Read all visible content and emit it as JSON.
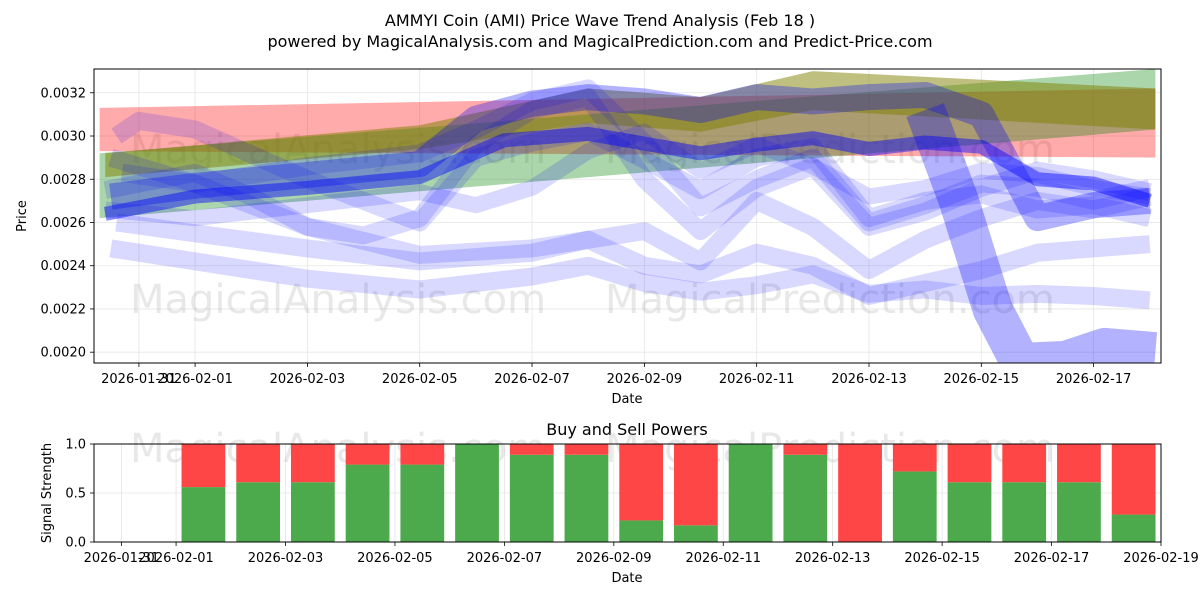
{
  "chart_data": [
    {
      "type": "line",
      "title": "AMMYI Coin (AMI) Price Wave Trend Analysis (Feb 18 )",
      "subtitle": "powered by MagicalAnalysis.com and MagicalPrediction.com and Predict-Price.com",
      "xlabel": "Date",
      "ylabel": "Price",
      "xlim": [
        -0.8,
        18.2
      ],
      "ylim": [
        0.00195,
        0.00331
      ],
      "x_ticks": [
        "2026-01-31",
        "2026-02-01",
        "2026-02-03",
        "2026-02-05",
        "2026-02-07",
        "2026-02-09",
        "2026-02-11",
        "2026-02-13",
        "2026-02-15",
        "2026-02-17"
      ],
      "x_tick_positions": [
        0,
        1,
        3,
        5,
        7,
        9,
        11,
        13,
        15,
        17
      ],
      "y_ticks": [
        "0.0020",
        "0.0022",
        "0.0024",
        "0.0026",
        "0.0028",
        "0.0030",
        "0.0032"
      ],
      "y_tick_values": [
        0.002,
        0.0022,
        0.0024,
        0.0026,
        0.0028,
        0.003,
        0.0032
      ],
      "watermarks": [
        "MagicalAnalysis.com",
        "MagicalPrediction.com"
      ],
      "bands": [
        {
          "name": "red-trend",
          "color": "#ff0000",
          "opacity": 0.33,
          "x": [
            -0.7,
            18.1
          ],
          "upper": [
            0.00313,
            0.00322
          ],
          "lower": [
            0.00293,
            0.0029
          ]
        },
        {
          "name": "green-trend",
          "color": "#008000",
          "opacity": 0.33,
          "x": [
            -0.7,
            18.1
          ],
          "upper": [
            0.00292,
            0.00331
          ],
          "lower": [
            0.00262,
            0.00303
          ]
        },
        {
          "name": "olive-trend",
          "color": "#808000",
          "opacity": 0.5,
          "x": [
            -0.6,
            5,
            8,
            10,
            12,
            18.1
          ],
          "upper": [
            0.00292,
            0.00305,
            0.00322,
            0.00318,
            0.0033,
            0.00322
          ],
          "lower": [
            0.00281,
            0.00294,
            0.00306,
            0.00302,
            0.00312,
            0.00303
          ]
        }
      ],
      "series": [
        {
          "name": "wave-1",
          "color": "#0000ff",
          "opacity": 0.45,
          "width": 14,
          "x": [
            -0.6,
            1,
            3,
            5,
            6.5,
            8,
            10,
            11,
            12,
            13,
            14,
            15,
            16,
            17,
            18
          ],
          "y": [
            0.00264,
            0.00272,
            0.00276,
            0.00281,
            0.00298,
            0.00301,
            0.00292,
            0.00296,
            0.00299,
            0.00294,
            0.00297,
            0.00295,
            0.0028,
            0.00278,
            0.0027
          ]
        },
        {
          "name": "wave-2",
          "color": "#0000ff",
          "opacity": 0.15,
          "width": 18,
          "x": [
            -0.5,
            1,
            3,
            5,
            7,
            9,
            10,
            11,
            12,
            13,
            14,
            15,
            16,
            17,
            18
          ],
          "y": [
            0.0029,
            0.00278,
            0.00258,
            0.00245,
            0.00248,
            0.00256,
            0.00242,
            0.0027,
            0.00258,
            0.00238,
            0.00252,
            0.00262,
            0.0027,
            0.00266,
            0.00272
          ]
        },
        {
          "name": "wave-3",
          "color": "#0000ff",
          "opacity": 0.15,
          "width": 18,
          "x": [
            -0.5,
            1,
            3,
            5,
            7,
            8,
            9,
            10,
            11,
            12,
            13,
            14,
            15,
            16,
            17,
            18
          ],
          "y": [
            0.00248,
            0.00242,
            0.00234,
            0.00229,
            0.00235,
            0.0024,
            0.00232,
            0.00228,
            0.00231,
            0.00236,
            0.00227,
            0.00229,
            0.00226,
            0.00227,
            0.00226,
            0.00224
          ]
        },
        {
          "name": "wave-4",
          "color": "#0000ff",
          "opacity": 0.15,
          "width": 18,
          "x": [
            -0.4,
            1,
            3,
            5,
            7,
            8,
            9,
            10,
            11,
            12,
            13,
            14,
            15,
            16,
            17,
            18
          ],
          "y": [
            0.0026,
            0.00255,
            0.00248,
            0.00242,
            0.00246,
            0.00252,
            0.0024,
            0.00236,
            0.00246,
            0.0024,
            0.00226,
            0.00232,
            0.00238,
            0.00246,
            0.00248,
            0.0025
          ]
        },
        {
          "name": "wave-5",
          "color": "#0000ff",
          "opacity": 0.15,
          "width": 18,
          "x": [
            -0.4,
            0,
            1,
            3,
            5,
            6,
            7,
            8,
            9,
            10,
            11,
            12,
            13,
            14,
            15,
            16,
            17,
            18
          ],
          "y": [
            0.003,
            0.00307,
            0.00303,
            0.0028,
            0.0026,
            0.0029,
            0.00297,
            0.00302,
            0.00289,
            0.00275,
            0.0029,
            0.00295,
            0.00262,
            0.0027,
            0.00273,
            0.00266,
            0.00268,
            0.00262
          ]
        },
        {
          "name": "wave-6",
          "color": "#0000ff",
          "opacity": 0.15,
          "width": 16,
          "x": [
            -0.6,
            1,
            3,
            5,
            6,
            7,
            8,
            9,
            10,
            11,
            12,
            13,
            14,
            15,
            16,
            17,
            18
          ],
          "y": [
            0.00266,
            0.00262,
            0.00268,
            0.00274,
            0.00268,
            0.00276,
            0.00293,
            0.00302,
            0.00284,
            0.00296,
            0.00286,
            0.00272,
            0.00276,
            0.00284,
            0.00282,
            0.00276,
            0.00272
          ]
        },
        {
          "name": "wave-7",
          "color": "#0000ff",
          "opacity": 0.15,
          "width": 18,
          "x": [
            -0.6,
            1,
            2,
            3,
            4,
            5,
            6,
            7,
            8,
            9,
            10,
            11,
            12,
            13,
            14,
            15,
            16,
            17,
            18
          ],
          "y": [
            0.00275,
            0.00283,
            0.00272,
            0.00258,
            0.00254,
            0.00262,
            0.00296,
            0.00312,
            0.00318,
            0.0028,
            0.00256,
            0.00276,
            0.00286,
            0.00258,
            0.00265,
            0.00276,
            0.00284,
            0.0028,
            0.00274
          ]
        },
        {
          "name": "wave-8",
          "color": "#0000ff",
          "opacity": 0.15,
          "width": 18,
          "x": [
            -0.3,
            1,
            3,
            5,
            6,
            7,
            8,
            9,
            10,
            11,
            12,
            13,
            14,
            15,
            16,
            17,
            18
          ],
          "y": [
            0.00283,
            0.00278,
            0.00286,
            0.00292,
            0.00303,
            0.00316,
            0.00322,
            0.00297,
            0.00267,
            0.0028,
            0.0029,
            0.0026,
            0.00268,
            0.00278,
            0.00276,
            0.0027,
            0.00276
          ]
        },
        {
          "name": "wave-9",
          "color": "#0000ff",
          "opacity": 0.3,
          "width": 26,
          "x": [
            -0.5,
            1,
            3,
            5,
            6,
            7,
            8,
            9,
            10,
            11,
            12,
            13,
            14,
            15,
            16,
            17,
            18
          ],
          "y": [
            0.00272,
            0.00277,
            0.00282,
            0.00287,
            0.00308,
            0.00315,
            0.00318,
            0.00316,
            0.00312,
            0.00318,
            0.00316,
            0.00318,
            0.00319,
            0.0031,
            0.00262,
            0.00268,
            0.0027
          ]
        },
        {
          "name": "wave-10",
          "color": "#0000ff",
          "opacity": 0.3,
          "width": 40,
          "x": [
            14,
            14.6,
            15.2,
            15.7,
            16.5,
            17.2,
            18.1
          ],
          "y": [
            0.00312,
            0.0027,
            0.0022,
            0.00195,
            0.00196,
            0.00202,
            0.002
          ]
        }
      ]
    },
    {
      "type": "bar",
      "title": "Buy and Sell Powers",
      "xlabel": "Date",
      "ylabel": "Signal Strength",
      "xlim": [
        -1,
        18.5
      ],
      "ylim": [
        0,
        1
      ],
      "x_ticks": [
        "2026-01-31",
        "2026-02-01",
        "2026-02-03",
        "2026-02-05",
        "2026-02-07",
        "2026-02-09",
        "2026-02-11",
        "2026-02-13",
        "2026-02-15",
        "2026-02-17",
        "2026-02-19"
      ],
      "x_tick_positions": [
        -0.5,
        0.5,
        2.5,
        4.5,
        6.5,
        8.5,
        10.5,
        12.5,
        14.5,
        16.5,
        18.5
      ],
      "y_ticks": [
        "0.0",
        "0.5",
        "1.0"
      ],
      "y_tick_values": [
        0,
        0.5,
        1
      ],
      "categories": [
        "2026-02-01",
        "2026-02-02",
        "2026-02-03",
        "2026-02-04",
        "2026-02-05",
        "2026-02-06",
        "2026-02-07",
        "2026-02-08",
        "2026-02-09",
        "2026-02-10",
        "2026-02-11",
        "2026-02-12",
        "2026-02-13",
        "2026-02-14",
        "2026-02-15",
        "2026-02-16",
        "2026-02-17",
        "2026-02-18"
      ],
      "series": [
        {
          "name": "Buy",
          "color": "#4caa4c",
          "values": [
            0.56,
            0.61,
            0.61,
            0.79,
            0.79,
            1.0,
            0.89,
            0.89,
            0.22,
            0.17,
            1.0,
            0.89,
            0.0,
            0.72,
            0.61,
            0.61,
            0.61,
            0.28
          ]
        },
        {
          "name": "Sell",
          "color": "#ff4646",
          "values": [
            0.44,
            0.39,
            0.39,
            0.21,
            0.21,
            0.0,
            0.11,
            0.11,
            0.78,
            0.83,
            0.0,
            0.11,
            1.0,
            0.28,
            0.39,
            0.39,
            0.39,
            0.72
          ]
        }
      ]
    }
  ]
}
